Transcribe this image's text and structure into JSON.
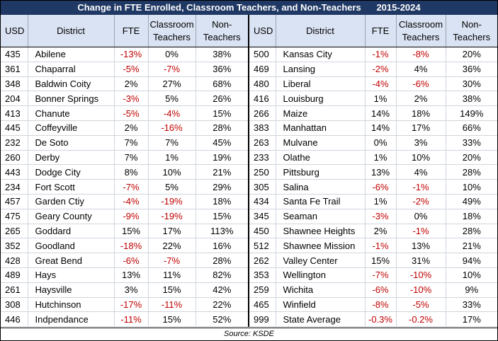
{
  "title": "Change in FTE Enrolled, Classroom Teachers, and Non-Teachers      2015-2024",
  "headers": {
    "usd": "USD",
    "district": "District",
    "fte": "FTE",
    "classroom_1": "Classroom",
    "classroom_2": "Teachers",
    "non_1": "Non-",
    "non_2": "Teachers"
  },
  "colors": {
    "title_bg": "#1f3864",
    "header_bg": "#dae3f3",
    "negative": "#c00000"
  },
  "left_rows": [
    {
      "usd": "435",
      "district": "Abilene",
      "fte": "-13%",
      "classroom": "0%",
      "non": "38%"
    },
    {
      "usd": "361",
      "district": "Chaparral",
      "fte": "-5%",
      "classroom": "-7%",
      "non": "36%"
    },
    {
      "usd": "348",
      "district": "Baldwin Coity",
      "fte": "2%",
      "classroom": "27%",
      "non": "68%"
    },
    {
      "usd": "204",
      "district": "Bonner Springs",
      "fte": "-3%",
      "classroom": "5%",
      "non": "26%"
    },
    {
      "usd": "413",
      "district": "Chanute",
      "fte": "-5%",
      "classroom": "-4%",
      "non": "15%"
    },
    {
      "usd": "445",
      "district": "Coffeyville",
      "fte": "2%",
      "classroom": "-16%",
      "non": "28%"
    },
    {
      "usd": "232",
      "district": "De Soto",
      "fte": "7%",
      "classroom": "7%",
      "non": "45%"
    },
    {
      "usd": "260",
      "district": "Derby",
      "fte": "7%",
      "classroom": "1%",
      "non": "19%"
    },
    {
      "usd": "443",
      "district": "Dodge City",
      "fte": "8%",
      "classroom": "10%",
      "non": "21%"
    },
    {
      "usd": "234",
      "district": "Fort Scott",
      "fte": "-7%",
      "classroom": "5%",
      "non": "29%"
    },
    {
      "usd": "457",
      "district": "Garden Ctiy",
      "fte": "-4%",
      "classroom": "-19%",
      "non": "18%"
    },
    {
      "usd": "475",
      "district": "Geary County",
      "fte": "-9%",
      "classroom": "-19%",
      "non": "15%"
    },
    {
      "usd": "265",
      "district": "Goddard",
      "fte": "15%",
      "classroom": "17%",
      "non": "113%"
    },
    {
      "usd": "352",
      "district": "Goodland",
      "fte": "-18%",
      "classroom": "22%",
      "non": "16%"
    },
    {
      "usd": "428",
      "district": "Great Bend",
      "fte": "-6%",
      "classroom": "-7%",
      "non": "28%"
    },
    {
      "usd": "489",
      "district": "Hays",
      "fte": "13%",
      "classroom": "11%",
      "non": "82%"
    },
    {
      "usd": "261",
      "district": "Haysville",
      "fte": "3%",
      "classroom": "15%",
      "non": "42%"
    },
    {
      "usd": "308",
      "district": "Hutchinson",
      "fte": "-17%",
      "classroom": "-11%",
      "non": "22%"
    },
    {
      "usd": "446",
      "district": "Indpendance",
      "fte": "-11%",
      "classroom": "15%",
      "non": "52%"
    }
  ],
  "right_rows": [
    {
      "usd": "500",
      "district": "Kansas City",
      "fte": "-1%",
      "classroom": "-8%",
      "non": "20%"
    },
    {
      "usd": "469",
      "district": "Lansing",
      "fte": "-2%",
      "classroom": "4%",
      "non": "36%"
    },
    {
      "usd": "480",
      "district": "Liberal",
      "fte": "-4%",
      "classroom": "-6%",
      "non": "30%"
    },
    {
      "usd": "416",
      "district": "Louisburg",
      "fte": "1%",
      "classroom": "2%",
      "non": "38%"
    },
    {
      "usd": "266",
      "district": "Maize",
      "fte": "14%",
      "classroom": "18%",
      "non": "149%"
    },
    {
      "usd": "383",
      "district": "Manhattan",
      "fte": "14%",
      "classroom": "17%",
      "non": "66%"
    },
    {
      "usd": "263",
      "district": "Mulvane",
      "fte": "0%",
      "classroom": "3%",
      "non": "33%"
    },
    {
      "usd": "233",
      "district": "Olathe",
      "fte": "1%",
      "classroom": "10%",
      "non": "20%"
    },
    {
      "usd": "250",
      "district": "Pittsburg",
      "fte": "13%",
      "classroom": "4%",
      "non": "28%"
    },
    {
      "usd": "305",
      "district": "Salina",
      "fte": "-6%",
      "classroom": "-1%",
      "non": "10%"
    },
    {
      "usd": "434",
      "district": "Santa Fe Trail",
      "fte": "1%",
      "classroom": "-2%",
      "non": "49%"
    },
    {
      "usd": "345",
      "district": "Seaman",
      "fte": "-3%",
      "classroom": "0%",
      "non": "18%"
    },
    {
      "usd": "450",
      "district": "Shawnee Heights",
      "fte": "2%",
      "classroom": "-1%",
      "non": "28%"
    },
    {
      "usd": "512",
      "district": "Shawnee Mission",
      "fte": "-1%",
      "classroom": "13%",
      "non": "21%"
    },
    {
      "usd": "262",
      "district": "Valley Center",
      "fte": "15%",
      "classroom": "31%",
      "non": "94%"
    },
    {
      "usd": "353",
      "district": "Wellington",
      "fte": "-7%",
      "classroom": "-10%",
      "non": "10%"
    },
    {
      "usd": "259",
      "district": "Wichita",
      "fte": "-6%",
      "classroom": "-10%",
      "non": "9%"
    },
    {
      "usd": "465",
      "district": "Winfield",
      "fte": "-8%",
      "classroom": "-5%",
      "non": "33%"
    },
    {
      "usd": "999",
      "district": "State Average",
      "fte": "-0.3%",
      "classroom": "-0.2%",
      "non": "17%"
    }
  ],
  "source": "Source: KSDE"
}
